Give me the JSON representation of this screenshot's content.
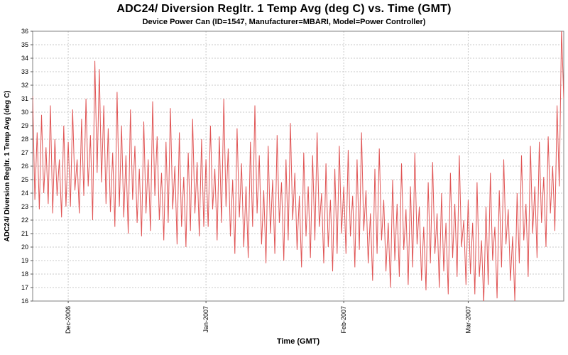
{
  "chart_data": {
    "type": "line",
    "title": "ADC24/ Diversion Regltr. 1 Temp Avg (deg C) vs. Time (GMT)",
    "subtitle": "Device Power Can (ID=1547, Manufacturer=MBARI, Model=Power Controller)",
    "xlabel": "Time (GMT)",
    "ylabel": "ADC24/ Diversion Regltr. 1 Temp Avg (deg C)",
    "ylim": [
      16,
      36
    ],
    "y_tick_step": 1,
    "grid": true,
    "legend": "none",
    "line_color": "#e05555",
    "grid_color": "#c8c8c8",
    "plot_border_color": "#808080",
    "sample_interval_hours": 12,
    "x_ticks": [
      {
        "label": "Dec-2006",
        "day": 8
      },
      {
        "label": "Jan-2007",
        "day": 39
      },
      {
        "label": "Feb-2007",
        "day": 70
      },
      {
        "label": "Mar-2007",
        "day": 98
      }
    ],
    "series": [
      {
        "name": "ADC24/ Diversion Regltr. 1 Temp Avg",
        "values": [
          31.2,
          23.5,
          28.5,
          22.8,
          29.8,
          24.0,
          27.4,
          23.2,
          30.5,
          22.5,
          28.0,
          23.8,
          26.5,
          22.2,
          29.0,
          23.0,
          27.8,
          23.0,
          30.2,
          24.2,
          26.5,
          22.5,
          29.5,
          23.8,
          31.0,
          24.5,
          28.3,
          22.0,
          33.8,
          25.5,
          33.2,
          24.8,
          30.5,
          23.2,
          28.8,
          22.6,
          27.0,
          21.5,
          31.5,
          23.0,
          29.0,
          22.2,
          26.8,
          21.0,
          30.2,
          23.5,
          27.5,
          21.8,
          25.8,
          20.8,
          29.3,
          22.5,
          26.5,
          21.2,
          30.8,
          23.8,
          28.2,
          22.0,
          25.5,
          20.5,
          27.8,
          21.8,
          30.3,
          22.8,
          26.0,
          20.2,
          28.5,
          21.5,
          25.2,
          20.0,
          27.0,
          21.2,
          29.5,
          22.5,
          26.3,
          20.8,
          28.0,
          21.5,
          26.5,
          21.5,
          29.0,
          22.8,
          25.8,
          20.5,
          28.2,
          21.8,
          31.0,
          23.0,
          27.3,
          20.8,
          25.0,
          19.5,
          28.8,
          22.2,
          26.2,
          20.0,
          24.5,
          19.2,
          27.8,
          21.5,
          30.5,
          22.5,
          26.8,
          20.2,
          24.2,
          18.8,
          27.5,
          21.0,
          25.0,
          19.5,
          28.3,
          21.8,
          24.8,
          19.0,
          26.5,
          20.5,
          29.2,
          22.0,
          25.5,
          19.8,
          23.8,
          18.5,
          27.0,
          20.8,
          24.5,
          19.2,
          26.8,
          20.5,
          28.5,
          21.5,
          24.0,
          18.8,
          26.2,
          20.0,
          23.5,
          18.2,
          25.8,
          19.5,
          27.5,
          21.0,
          24.5,
          19.5,
          27.2,
          20.8,
          23.8,
          18.5,
          26.5,
          19.8,
          28.5,
          21.2,
          24.2,
          18.8,
          22.5,
          17.5,
          25.8,
          19.5,
          27.3,
          20.5,
          23.5,
          18.2,
          21.8,
          17.0,
          25.0,
          19.0,
          23.2,
          17.8,
          26.2,
          19.8,
          22.8,
          17.2,
          24.5,
          18.5,
          27.0,
          20.2,
          23.0,
          17.5,
          21.5,
          16.8,
          24.8,
          18.8,
          26.3,
          19.5,
          22.5,
          17.0,
          24.0,
          18.2,
          21.8,
          16.5,
          25.5,
          19.2,
          23.2,
          17.8,
          26.8,
          20.0,
          22.0,
          17.2,
          23.5,
          18.0,
          21.8,
          16.5,
          24.8,
          17.8,
          20.5,
          15.8,
          23.0,
          17.2,
          25.5,
          19.0,
          21.5,
          16.2,
          24.2,
          18.5,
          26.5,
          20.2,
          22.8,
          17.5,
          20.8,
          16.0,
          24.0,
          18.8,
          26.8,
          20.5,
          23.2,
          17.8,
          27.5,
          21.0,
          24.5,
          19.2,
          27.8,
          21.8,
          25.2,
          20.0,
          28.2,
          22.5,
          26.0,
          21.2,
          30.5,
          24.5,
          36.2,
          31.0
        ]
      }
    ]
  }
}
